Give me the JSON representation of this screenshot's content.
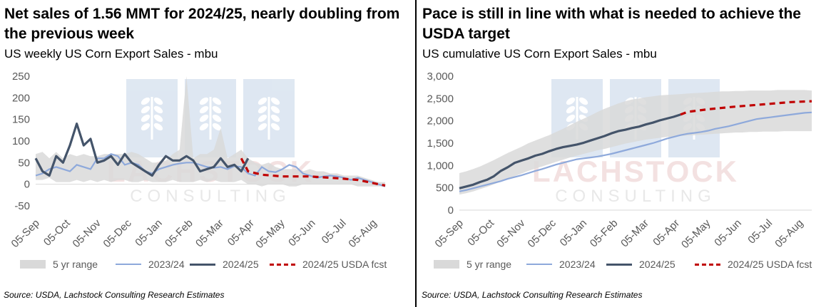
{
  "charts": [
    {
      "title": "Net sales of 1.56 MMT for 2024/25, nearly doubling from the previous week",
      "subtitle": "US weekly US Corn Export Sales - mbu",
      "source": "Source: USDA, Lachstock Consulting Research Estimates",
      "legend": [
        "5 yr range",
        "2023/24",
        "2024/25",
        "2024/25 USDA fcst"
      ]
    },
    {
      "title": "Pace is still in line with what is needed to achieve the USDA target",
      "subtitle": "US cumulative US Corn Export Sales - mbu",
      "source": "Source: USDA, Lachstock Consulting Research Estimates",
      "legend": [
        "5 yr range",
        "2023/24",
        "2024/25",
        "2024/25 USDA fcst"
      ]
    }
  ],
  "watermark": "LACHSTOCK CONSULTING",
  "colors": {
    "range": "#d9d9d9",
    "s2324": "#8ea9db",
    "s2425": "#44546a",
    "fcst": "#c00000",
    "axis_text": "#595959",
    "watermark": "#dbe5f1"
  },
  "chart_data": [
    {
      "type": "line",
      "title": "Net sales of 1.56 MMT for 2024/25, nearly doubling from the previous week",
      "subtitle": "US weekly US Corn Export Sales - mbu",
      "x_tick_labels": [
        "05-Sep",
        "05-Oct",
        "05-Nov",
        "05-Dec",
        "05-Jan",
        "05-Feb",
        "05-Mar",
        "05-Apr",
        "05-May",
        "05-Jun",
        "05-Jul",
        "05-Aug"
      ],
      "x_weeks": 52,
      "ylim": [
        -50,
        250
      ],
      "yticks": [
        -50,
        0,
        50,
        100,
        150,
        200,
        250
      ],
      "grid": false,
      "legend_position": "bottom",
      "range_low": [
        10,
        10,
        15,
        5,
        5,
        5,
        10,
        5,
        10,
        5,
        10,
        5,
        10,
        10,
        5,
        5,
        10,
        5,
        5,
        5,
        10,
        5,
        5,
        5,
        10,
        5,
        10,
        5,
        5,
        5,
        10,
        0,
        0,
        -5,
        0,
        0,
        0,
        -5,
        -5,
        0,
        0,
        0,
        0,
        0,
        0,
        0,
        0,
        -5,
        -5,
        -5,
        -5,
        -5
      ],
      "range_high": [
        70,
        75,
        60,
        75,
        60,
        70,
        65,
        70,
        65,
        65,
        70,
        70,
        70,
        70,
        75,
        70,
        60,
        50,
        50,
        55,
        70,
        80,
        250,
        60,
        70,
        70,
        80,
        130,
        60,
        70,
        80,
        60,
        50,
        45,
        50,
        40,
        35,
        35,
        35,
        30,
        35,
        30,
        30,
        25,
        25,
        20,
        20,
        20,
        15,
        10,
        5,
        5
      ],
      "series": [
        {
          "name": "2023/24",
          "values": [
            20,
            25,
            35,
            40,
            35,
            30,
            45,
            40,
            35,
            60,
            60,
            70,
            65,
            45,
            50,
            45,
            30,
            25,
            35,
            40,
            45,
            48,
            50,
            50,
            45,
            40,
            38,
            40,
            35,
            42,
            40,
            25,
            20,
            40,
            30,
            28,
            35,
            45,
            40,
            25,
            20,
            15,
            18,
            20,
            18,
            15,
            10,
            15,
            10,
            5,
            0,
            -5
          ]
        },
        {
          "name": "2024/25",
          "values": [
            60,
            30,
            20,
            65,
            50,
            90,
            140,
            90,
            105,
            50,
            55,
            65,
            45,
            70,
            50,
            40,
            30,
            20,
            45,
            65,
            55,
            55,
            65,
            55,
            30,
            35,
            40,
            60,
            40,
            45,
            30,
            60
          ]
        },
        {
          "name": "2024/25 USDA fcst",
          "values": [
            [
              30,
              60
            ],
            [
              31,
              30
            ],
            [
              33,
              22
            ],
            [
              36,
              18
            ],
            [
              40,
              18
            ],
            [
              44,
              14
            ],
            [
              47,
              10
            ],
            [
              51,
              -3
            ]
          ]
        }
      ]
    },
    {
      "type": "line",
      "title": "Pace is still in line with what is needed to achieve the USDA target",
      "subtitle": "US cumulative US Corn Export Sales - mbu",
      "x_tick_labels": [
        "05-Sep",
        "05-Oct",
        "05-Nov",
        "05-Dec",
        "05-Jan",
        "05-Feb",
        "05-Mar",
        "05-Apr",
        "05-May",
        "05-Jun",
        "05-Jul",
        "05-Aug"
      ],
      "x_weeks": 52,
      "ylim": [
        0,
        3000
      ],
      "yticks": [
        0,
        500,
        1000,
        1500,
        2000,
        2500,
        3000
      ],
      "grid": false,
      "legend_position": "bottom",
      "range_low": [
        350,
        380,
        420,
        470,
        520,
        580,
        640,
        700,
        760,
        820,
        880,
        930,
        980,
        1030,
        1080,
        1130,
        1180,
        1220,
        1260,
        1300,
        1340,
        1370,
        1410,
        1450,
        1490,
        1520,
        1550,
        1580,
        1600,
        1620,
        1640,
        1650,
        1660,
        1670,
        1680,
        1690,
        1700,
        1710,
        1720,
        1730,
        1740,
        1740,
        1750,
        1750,
        1760,
        1760,
        1760,
        1770,
        1770,
        1770,
        1770,
        1770
      ],
      "range_high": [
        830,
        870,
        920,
        980,
        1050,
        1120,
        1200,
        1280,
        1350,
        1420,
        1500,
        1560,
        1620,
        1680,
        1750,
        1820,
        1900,
        1980,
        2050,
        2120,
        2200,
        2270,
        2330,
        2390,
        2440,
        2480,
        2500,
        2530,
        2550,
        2570,
        2580,
        2590,
        2600,
        2610,
        2620,
        2630,
        2640,
        2650,
        2660,
        2660,
        2670,
        2670,
        2680,
        2680,
        2680,
        2680,
        2690,
        2690,
        2690,
        2690,
        2690,
        2680
      ],
      "series": [
        {
          "name": "2023/24",
          "values": [
            420,
            450,
            490,
            530,
            570,
            610,
            650,
            700,
            740,
            780,
            830,
            880,
            920,
            970,
            1020,
            1060,
            1100,
            1140,
            1160,
            1180,
            1200,
            1230,
            1260,
            1300,
            1340,
            1380,
            1420,
            1460,
            1500,
            1550,
            1600,
            1640,
            1680,
            1710,
            1730,
            1750,
            1780,
            1820,
            1850,
            1880,
            1920,
            1960,
            2000,
            2040,
            2060,
            2080,
            2100,
            2120,
            2140,
            2160,
            2180,
            2190
          ]
        },
        {
          "name": "2024/25",
          "values": [
            490,
            530,
            570,
            630,
            680,
            760,
            880,
            960,
            1060,
            1110,
            1160,
            1220,
            1260,
            1320,
            1370,
            1410,
            1440,
            1470,
            1510,
            1560,
            1610,
            1660,
            1720,
            1770,
            1800,
            1840,
            1870,
            1920,
            1960,
            2010,
            2050,
            2090,
            2140
          ]
        },
        {
          "name": "2024/25 USDA fcst",
          "values": [
            [
              32,
              2140
            ],
            [
              33,
              2200
            ],
            [
              36,
              2260
            ],
            [
              40,
              2320
            ],
            [
              44,
              2370
            ],
            [
              48,
              2420
            ],
            [
              51,
              2440
            ]
          ]
        }
      ]
    }
  ]
}
